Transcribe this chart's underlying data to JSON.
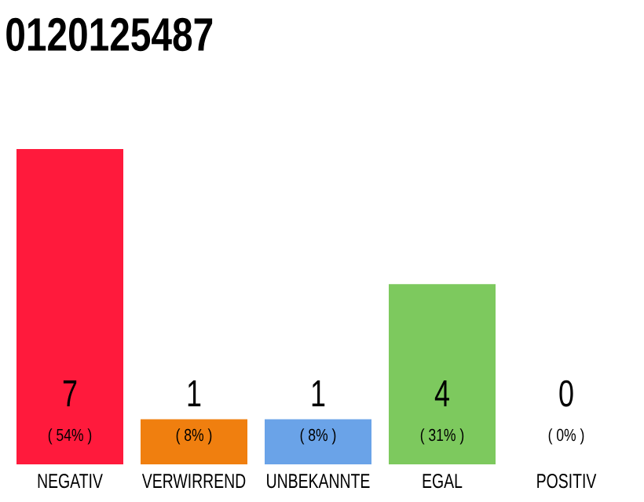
{
  "chart_data": {
    "type": "bar",
    "title": "0120125487",
    "categories": [
      "NEGATIV",
      "VERWIRREND",
      "UNBEKANNTE",
      "EGAL",
      "POSITIV"
    ],
    "values": [
      7,
      1,
      1,
      4,
      0
    ],
    "colors": [
      "#ff1a3c",
      "#f07f0f",
      "#6aa3e8",
      "#7dc95e",
      "#bbbbbb"
    ],
    "data_labels": true,
    "annotations": [
      "( 54% )",
      "( 8% )",
      "( 8% )",
      "( 31% )",
      "( 0% )"
    ]
  }
}
